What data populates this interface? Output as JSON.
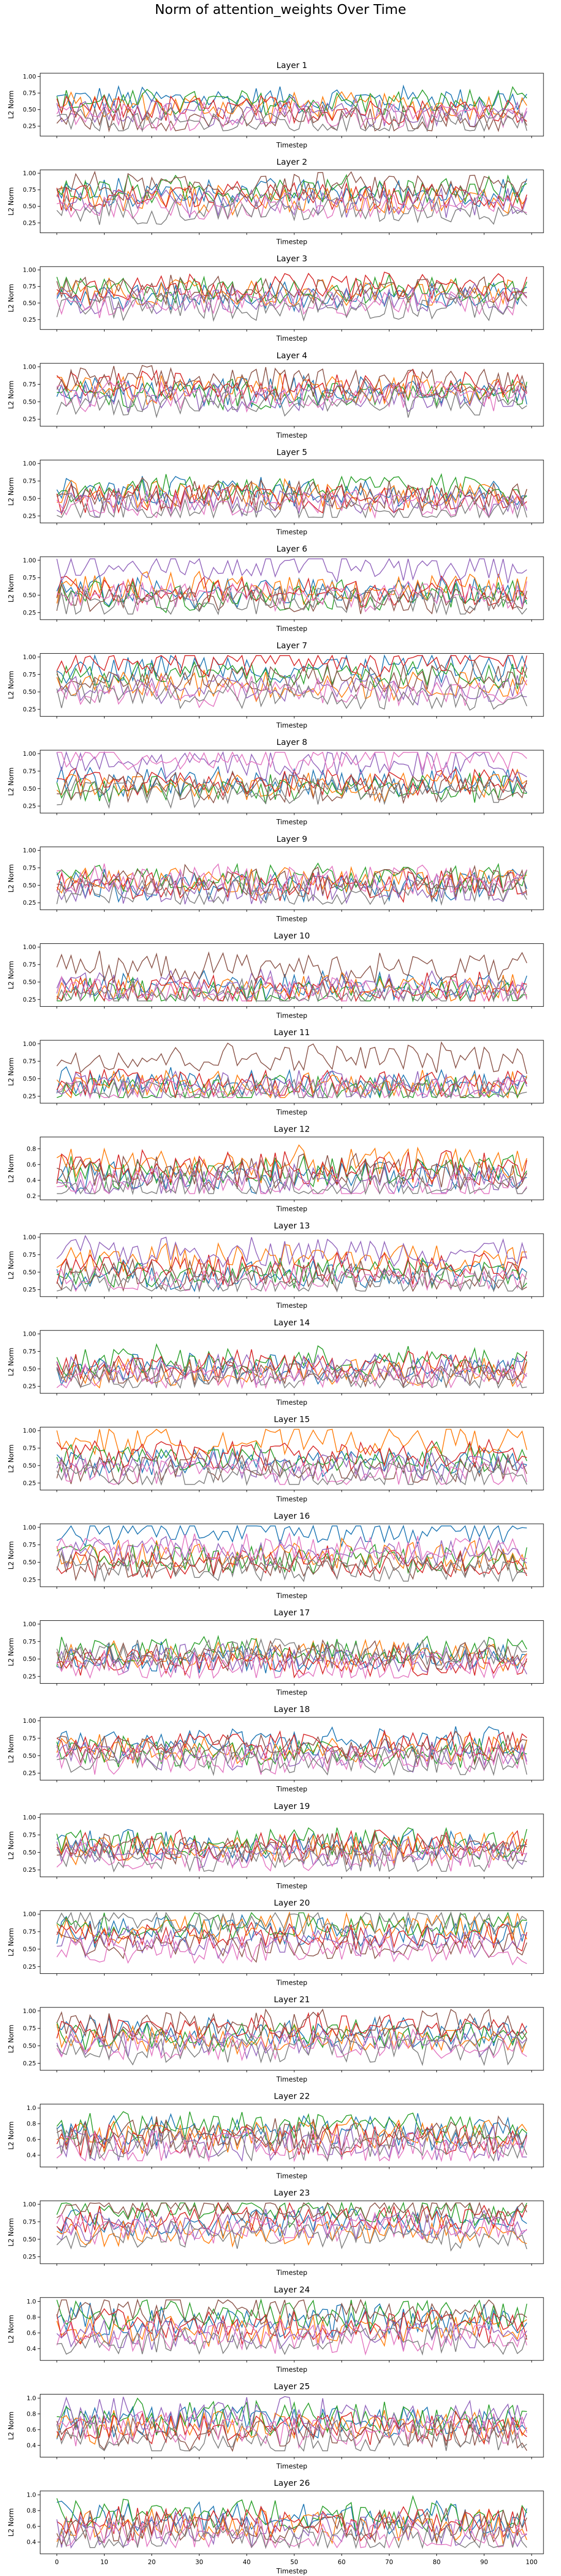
{
  "title": "Norm of attention_weights Over Time",
  "xlabel": "Timestep",
  "ylabel": "L2 Norm",
  "xticks": [
    0,
    10,
    20,
    30,
    40,
    50,
    60,
    70,
    80,
    90,
    100
  ],
  "colors": [
    "#1f77b4",
    "#ff7f0e",
    "#2ca02c",
    "#d62728",
    "#9467bd",
    "#8c564b",
    "#e377c2",
    "#7f7f7f"
  ],
  "chart_data": {
    "type": "line",
    "title": "Norm of attention_weights Over Time",
    "x_range": [
      0,
      99
    ],
    "xlim": [
      -3.5,
      102.5
    ],
    "series_per_layer": 8,
    "layers": [
      {
        "title": "Layer 1",
        "ylim": [
          0.1,
          1.05
        ],
        "yticks": [
          0.25,
          0.5,
          0.75,
          1.0
        ],
        "ytick_labels": [
          "0.25",
          "0.50",
          "0.75",
          "1.00"
        ],
        "series_means": [
          0.65,
          0.55,
          0.6,
          0.5,
          0.45,
          0.35,
          0.4,
          0.3
        ]
      },
      {
        "title": "Layer 2",
        "ylim": [
          0.1,
          1.05
        ],
        "yticks": [
          0.25,
          0.5,
          0.75,
          1.0
        ],
        "ytick_labels": [
          "0.25",
          "0.50",
          "0.75",
          "1.00"
        ],
        "series_means": [
          0.7,
          0.6,
          0.75,
          0.65,
          0.55,
          0.8,
          0.5,
          0.45
        ]
      },
      {
        "title": "Layer 3",
        "ylim": [
          0.1,
          1.05
        ],
        "yticks": [
          0.25,
          0.5,
          0.75,
          1.0
        ],
        "ytick_labels": [
          "0.25",
          "0.50",
          "0.75",
          "1.00"
        ],
        "series_means": [
          0.6,
          0.65,
          0.7,
          0.75,
          0.55,
          0.7,
          0.5,
          0.45
        ]
      },
      {
        "title": "Layer 4",
        "ylim": [
          0.15,
          1.05
        ],
        "yticks": [
          0.25,
          0.5,
          0.75,
          1.0
        ],
        "ytick_labels": [
          "0.25",
          "0.50",
          "0.75",
          "1.00"
        ],
        "series_means": [
          0.65,
          0.7,
          0.6,
          0.75,
          0.55,
          0.8,
          0.6,
          0.5
        ]
      },
      {
        "title": "Layer 5",
        "ylim": [
          0.15,
          1.05
        ],
        "yticks": [
          0.25,
          0.5,
          0.75,
          1.0
        ],
        "ytick_labels": [
          "0.25",
          "0.50",
          "0.75",
          "1.00"
        ],
        "series_means": [
          0.6,
          0.55,
          0.65,
          0.5,
          0.45,
          0.55,
          0.4,
          0.35
        ]
      },
      {
        "title": "Layer 6",
        "ylim": [
          0.15,
          1.05
        ],
        "yticks": [
          0.25,
          0.5,
          0.75,
          1.0
        ],
        "ytick_labels": [
          "0.25",
          "0.50",
          "0.75",
          "1.00"
        ],
        "series_means": [
          0.55,
          0.6,
          0.5,
          0.55,
          0.9,
          0.45,
          0.5,
          0.4
        ]
      },
      {
        "title": "Layer 7",
        "ylim": [
          0.15,
          1.05
        ],
        "yticks": [
          0.25,
          0.5,
          0.75,
          1.0
        ],
        "ytick_labels": [
          "0.25",
          "0.50",
          "0.75",
          "1.00"
        ],
        "series_means": [
          0.85,
          0.6,
          0.75,
          0.95,
          0.55,
          0.7,
          0.5,
          0.45
        ]
      },
      {
        "title": "Layer 8",
        "ylim": [
          0.15,
          1.05
        ],
        "yticks": [
          0.25,
          0.5,
          0.75,
          1.0
        ],
        "ytick_labels": [
          "0.25",
          "0.50",
          "0.75",
          "1.00"
        ],
        "series_means": [
          0.6,
          0.55,
          0.5,
          0.6,
          0.85,
          0.5,
          0.95,
          0.45
        ]
      },
      {
        "title": "Layer 9",
        "ylim": [
          0.15,
          1.05
        ],
        "yticks": [
          0.25,
          0.5,
          0.75,
          1.0
        ],
        "ytick_labels": [
          "0.25",
          "0.50",
          "0.75",
          "1.00"
        ],
        "series_means": [
          0.5,
          0.55,
          0.6,
          0.5,
          0.45,
          0.55,
          0.6,
          0.4
        ]
      },
      {
        "title": "Layer 10",
        "ylim": [
          0.15,
          1.05
        ],
        "yticks": [
          0.25,
          0.5,
          0.75,
          1.0
        ],
        "ytick_labels": [
          "0.25",
          "0.50",
          "0.75",
          "1.00"
        ],
        "series_means": [
          0.45,
          0.4,
          0.35,
          0.4,
          0.45,
          0.7,
          0.35,
          0.3
        ]
      },
      {
        "title": "Layer 11",
        "ylim": [
          0.15,
          1.05
        ],
        "yticks": [
          0.25,
          0.5,
          0.75,
          1.0
        ],
        "ytick_labels": [
          "0.25",
          "0.50",
          "0.75",
          "1.00"
        ],
        "series_means": [
          0.45,
          0.4,
          0.35,
          0.45,
          0.4,
          0.8,
          0.35,
          0.3
        ]
      },
      {
        "title": "Layer 12",
        "ylim": [
          0.15,
          0.95
        ],
        "yticks": [
          0.2,
          0.4,
          0.6,
          0.8
        ],
        "ytick_labels": [
          "0.2",
          "0.4",
          "0.6",
          "0.8"
        ],
        "series_means": [
          0.45,
          0.6,
          0.5,
          0.55,
          0.4,
          0.5,
          0.35,
          0.3
        ]
      },
      {
        "title": "Layer 13",
        "ylim": [
          0.15,
          1.05
        ],
        "yticks": [
          0.25,
          0.5,
          0.75,
          1.0
        ],
        "ytick_labels": [
          "0.25",
          "0.50",
          "0.75",
          "1.00"
        ],
        "series_means": [
          0.45,
          0.7,
          0.5,
          0.55,
          0.8,
          0.45,
          0.4,
          0.35
        ]
      },
      {
        "title": "Layer 14",
        "ylim": [
          0.15,
          1.05
        ],
        "yticks": [
          0.25,
          0.5,
          0.75,
          1.0
        ],
        "ytick_labels": [
          "0.25",
          "0.50",
          "0.75",
          "1.00"
        ],
        "series_means": [
          0.5,
          0.45,
          0.6,
          0.55,
          0.5,
          0.45,
          0.4,
          0.35
        ]
      },
      {
        "title": "Layer 15",
        "ylim": [
          0.15,
          1.05
        ],
        "yticks": [
          0.25,
          0.5,
          0.75,
          1.0
        ],
        "ytick_labels": [
          "0.25",
          "0.50",
          "0.75",
          "1.00"
        ],
        "series_means": [
          0.55,
          0.85,
          0.6,
          0.65,
          0.5,
          0.45,
          0.4,
          0.35
        ]
      },
      {
        "title": "Layer 16",
        "ylim": [
          0.15,
          1.05
        ],
        "yticks": [
          0.25,
          0.5,
          0.75,
          1.0
        ],
        "ytick_labels": [
          "0.25",
          "0.50",
          "0.75",
          "1.00"
        ],
        "series_means": [
          0.97,
          0.6,
          0.55,
          0.5,
          0.65,
          0.45,
          0.7,
          0.4
        ]
      },
      {
        "title": "Layer 17",
        "ylim": [
          0.15,
          1.05
        ],
        "yticks": [
          0.25,
          0.5,
          0.75,
          1.0
        ],
        "ytick_labels": [
          "0.25",
          "0.50",
          "0.75",
          "1.00"
        ],
        "series_means": [
          0.5,
          0.55,
          0.6,
          0.45,
          0.5,
          0.55,
          0.4,
          0.6
        ]
      },
      {
        "title": "Layer 18",
        "ylim": [
          0.15,
          1.05
        ],
        "yticks": [
          0.25,
          0.5,
          0.75,
          1.0
        ],
        "ytick_labels": [
          "0.25",
          "0.50",
          "0.75",
          "1.00"
        ],
        "series_means": [
          0.7,
          0.6,
          0.55,
          0.65,
          0.5,
          0.6,
          0.45,
          0.4
        ]
      },
      {
        "title": "Layer 19",
        "ylim": [
          0.15,
          1.05
        ],
        "yticks": [
          0.25,
          0.5,
          0.75,
          1.0
        ],
        "ytick_labels": [
          "0.25",
          "0.50",
          "0.75",
          "1.00"
        ],
        "series_means": [
          0.6,
          0.55,
          0.65,
          0.6,
          0.5,
          0.55,
          0.45,
          0.4
        ]
      },
      {
        "title": "Layer 20",
        "ylim": [
          0.15,
          1.05
        ],
        "yticks": [
          0.25,
          0.5,
          0.75,
          1.0
        ],
        "ytick_labels": [
          "0.25",
          "0.50",
          "0.75",
          "1.00"
        ],
        "series_means": [
          0.75,
          0.8,
          0.85,
          0.7,
          0.6,
          0.55,
          0.5,
          0.9
        ]
      },
      {
        "title": "Layer 21",
        "ylim": [
          0.15,
          1.05
        ],
        "yticks": [
          0.25,
          0.5,
          0.75,
          1.0
        ],
        "ytick_labels": [
          "0.25",
          "0.50",
          "0.75",
          "1.00"
        ],
        "series_means": [
          0.7,
          0.6,
          0.65,
          0.75,
          0.55,
          0.8,
          0.5,
          0.45
        ]
      },
      {
        "title": "Layer 22",
        "ylim": [
          0.25,
          1.05
        ],
        "yticks": [
          0.4,
          0.6,
          0.8,
          1.0
        ],
        "ytick_labels": [
          "0.4",
          "0.6",
          "0.8",
          "1.0"
        ],
        "series_means": [
          0.7,
          0.65,
          0.75,
          0.6,
          0.55,
          0.65,
          0.5,
          0.55
        ]
      },
      {
        "title": "Layer 23",
        "ylim": [
          0.15,
          1.05
        ],
        "yticks": [
          0.25,
          0.5,
          0.75,
          1.0
        ],
        "ytick_labels": [
          "0.25",
          "0.50",
          "0.75",
          "1.00"
        ],
        "series_means": [
          0.75,
          0.6,
          0.9,
          0.8,
          0.7,
          0.95,
          0.65,
          0.55
        ]
      },
      {
        "title": "Layer 24",
        "ylim": [
          0.25,
          1.05
        ],
        "yticks": [
          0.4,
          0.6,
          0.8,
          1.0
        ],
        "ytick_labels": [
          "0.4",
          "0.6",
          "0.8",
          "1.0"
        ],
        "series_means": [
          0.75,
          0.65,
          0.85,
          0.7,
          0.6,
          0.9,
          0.55,
          0.5
        ]
      },
      {
        "title": "Layer 25",
        "ylim": [
          0.25,
          1.05
        ],
        "yticks": [
          0.4,
          0.6,
          0.8,
          1.0
        ],
        "ytick_labels": [
          "0.4",
          "0.6",
          "0.8",
          "1.0"
        ],
        "series_means": [
          0.7,
          0.65,
          0.75,
          0.6,
          0.8,
          0.55,
          0.6,
          0.5
        ]
      },
      {
        "title": "Layer 26",
        "ylim": [
          0.25,
          1.05
        ],
        "yticks": [
          0.4,
          0.6,
          0.8,
          1.0
        ],
        "ytick_labels": [
          "0.4",
          "0.6",
          "0.8",
          "1.0"
        ],
        "series_means": [
          0.7,
          0.6,
          0.75,
          0.65,
          0.55,
          0.6,
          0.5,
          0.45
        ]
      }
    ]
  }
}
